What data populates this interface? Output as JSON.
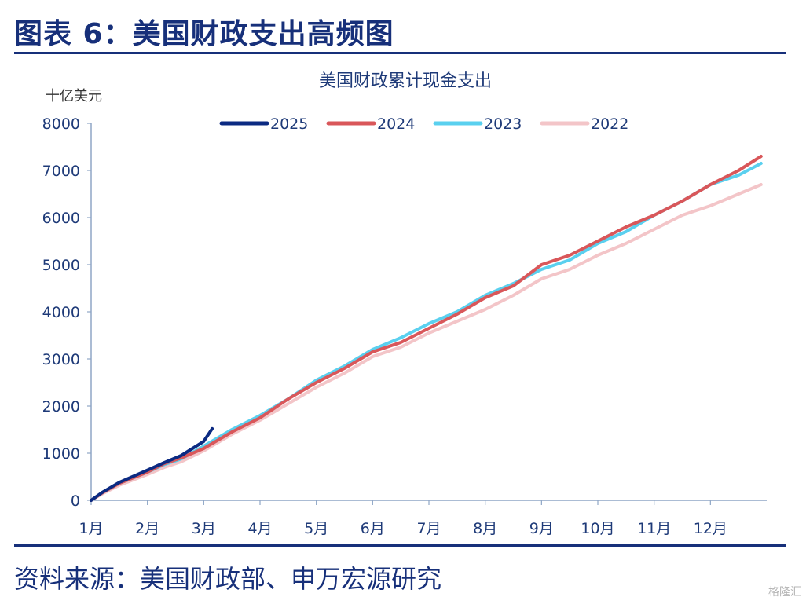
{
  "header": {
    "title": "图表 6：美国财政支出高频图"
  },
  "source": "资料来源：美国财政部、申万宏源研究",
  "watermark": "格隆汇",
  "colors": {
    "brand": "#17307a",
    "axis": "#8fa6c6",
    "tick_text": "#1e3a78"
  },
  "chart_data": {
    "type": "line",
    "title": "美国财政累计现金支出",
    "ylabel": "十亿美元",
    "ylim": [
      0,
      8000
    ],
    "yticks": [
      0,
      1000,
      2000,
      3000,
      4000,
      5000,
      6000,
      7000,
      8000
    ],
    "xlim": [
      0,
      12
    ],
    "xticks": [
      {
        "x": 0,
        "label": "1月"
      },
      {
        "x": 1,
        "label": "2月"
      },
      {
        "x": 2,
        "label": "3月"
      },
      {
        "x": 3,
        "label": "4月"
      },
      {
        "x": 4,
        "label": "5月"
      },
      {
        "x": 5,
        "label": "6月"
      },
      {
        "x": 6,
        "label": "7月"
      },
      {
        "x": 7,
        "label": "8月"
      },
      {
        "x": 8,
        "label": "9月"
      },
      {
        "x": 9,
        "label": "10月"
      },
      {
        "x": 10,
        "label": "11月"
      },
      {
        "x": 11,
        "label": "12月"
      }
    ],
    "legend_position": "top-center",
    "series": [
      {
        "name": "2025",
        "color": "#0b2a82",
        "x": [
          0,
          0.2,
          0.5,
          1.0,
          1.3,
          1.6,
          2.0,
          2.15
        ],
        "y": [
          0,
          170,
          380,
          640,
          800,
          950,
          1250,
          1520
        ]
      },
      {
        "name": "2024",
        "color": "#d9575a",
        "x": [
          0,
          0.2,
          0.5,
          1.0,
          1.3,
          1.6,
          2.0,
          2.5,
          3.0,
          3.5,
          4.0,
          4.5,
          5.0,
          5.5,
          6.0,
          6.5,
          7.0,
          7.5,
          8.0,
          8.5,
          9.0,
          9.5,
          10.0,
          10.5,
          11.0,
          11.5,
          11.9
        ],
        "y": [
          0,
          160,
          360,
          600,
          780,
          900,
          1100,
          1450,
          1750,
          2150,
          2500,
          2800,
          3150,
          3350,
          3650,
          3950,
          4300,
          4550,
          5000,
          5200,
          5500,
          5800,
          6050,
          6350,
          6700,
          7000,
          7300
        ]
      },
      {
        "name": "2023",
        "color": "#5ad0ef",
        "x": [
          0,
          0.2,
          0.5,
          1.0,
          1.3,
          1.6,
          2.0,
          2.5,
          3.0,
          3.5,
          4.0,
          4.5,
          5.0,
          5.5,
          6.0,
          6.5,
          7.0,
          7.5,
          8.0,
          8.5,
          9.0,
          9.5,
          10.0,
          10.5,
          11.0,
          11.5,
          11.9
        ],
        "y": [
          0,
          160,
          360,
          600,
          760,
          880,
          1150,
          1500,
          1800,
          2150,
          2550,
          2850,
          3200,
          3450,
          3750,
          4000,
          4350,
          4600,
          4900,
          5100,
          5450,
          5700,
          6050,
          6350,
          6700,
          6900,
          7150
        ]
      },
      {
        "name": "2022",
        "color": "#f3c5c8",
        "x": [
          0,
          0.2,
          0.5,
          1.0,
          1.3,
          1.6,
          2.0,
          2.5,
          3.0,
          3.5,
          4.0,
          4.5,
          5.0,
          5.5,
          6.0,
          6.5,
          7.0,
          7.5,
          8.0,
          8.5,
          9.0,
          9.5,
          10.0,
          10.5,
          11.0,
          11.5,
          11.9
        ],
        "y": [
          0,
          140,
          320,
          550,
          700,
          820,
          1050,
          1400,
          1700,
          2050,
          2400,
          2700,
          3050,
          3250,
          3550,
          3800,
          4050,
          4350,
          4700,
          4900,
          5200,
          5450,
          5750,
          6050,
          6250,
          6500,
          6700
        ]
      }
    ]
  }
}
